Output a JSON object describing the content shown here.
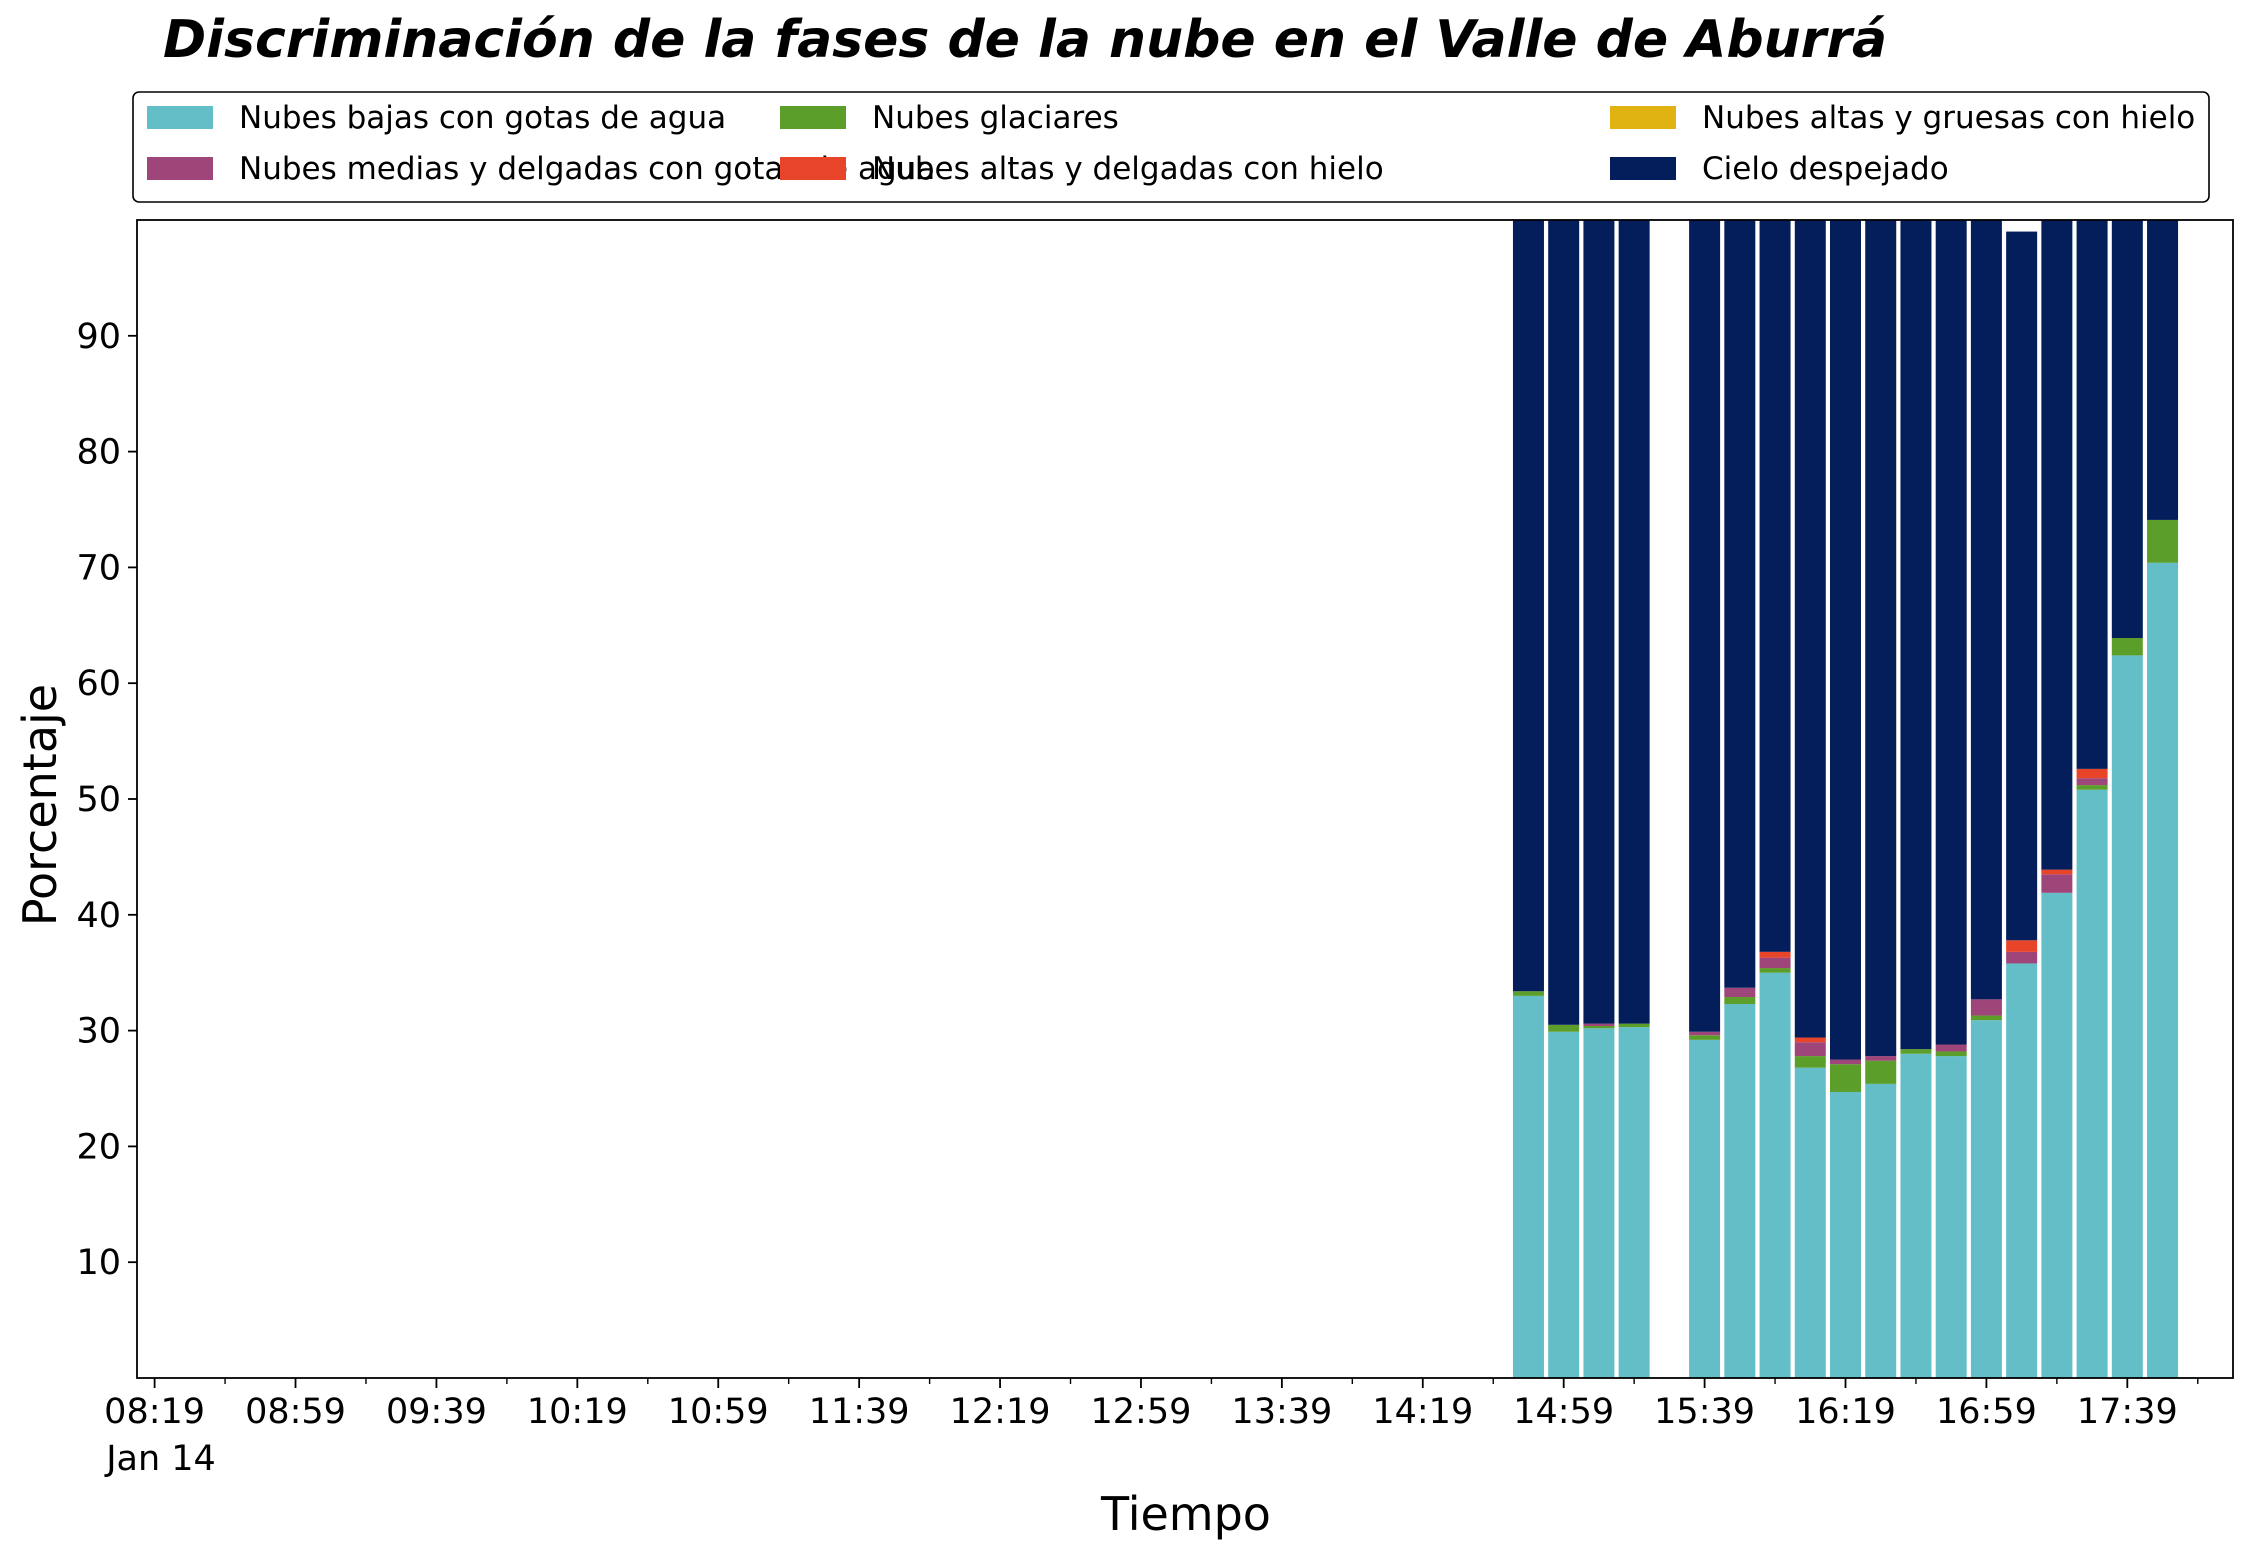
{
  "chart_data": {
    "type": "bar",
    "stacked": true,
    "title": "Discriminación de la fases de la nube en el Valle de Aburrá",
    "xlabel": "Tiempo",
    "ylabel": "Porcentaje",
    "ylim": [
      0,
      100
    ],
    "y_ticks": [
      10,
      20,
      30,
      40,
      50,
      60,
      70,
      80,
      90
    ],
    "x_tick_labels": [
      "08:19",
      "08:59",
      "09:39",
      "10:19",
      "10:59",
      "11:39",
      "12:19",
      "12:59",
      "13:39",
      "14:19",
      "14:59",
      "15:39",
      "16:19",
      "16:59",
      "17:39"
    ],
    "x_date_label": "Jan 14",
    "x_range": [
      "08:14",
      "18:09"
    ],
    "bar_interval_minutes": 10,
    "grid": false,
    "legend_position": "top",
    "x": [
      "14:49",
      "14:59",
      "15:09",
      "15:19",
      "15:39",
      "15:49",
      "15:59",
      "16:09",
      "16:19",
      "16:29",
      "16:39",
      "16:49",
      "16:59",
      "17:09",
      "17:19",
      "17:29",
      "17:39",
      "17:49"
    ],
    "series": [
      {
        "name": "Nubes bajas con gotas de agua",
        "color": "#64bec8",
        "values": [
          33.0,
          29.9,
          30.2,
          30.3,
          29.2,
          32.3,
          35.0,
          26.8,
          24.7,
          25.4,
          28.0,
          27.8,
          30.9,
          35.8,
          41.9,
          50.8,
          62.4,
          70.4
        ]
      },
      {
        "name": "Nubes glaciares",
        "color": "#5c9e2a",
        "values": [
          0.4,
          0.6,
          0.2,
          0.3,
          0.4,
          0.6,
          0.4,
          1.0,
          2.4,
          2.0,
          0.4,
          0.4,
          0.4,
          0.0,
          0.0,
          0.4,
          1.5,
          3.7
        ]
      },
      {
        "name": "Nubes altas y gruesas con hielo",
        "color": "#e0b313",
        "values": [
          0,
          0,
          0,
          0,
          0,
          0,
          0,
          0,
          0,
          0,
          0,
          0,
          0,
          0,
          0,
          0,
          0,
          0
        ]
      },
      {
        "name": "Nubes medias y delgadas con gotas de agua",
        "color": "#9e4579",
        "values": [
          0.0,
          0.0,
          0.2,
          0.0,
          0.3,
          0.8,
          0.9,
          1.2,
          0.4,
          0.4,
          0.0,
          0.6,
          1.4,
          1.0,
          1.6,
          0.6,
          0.0,
          0.0
        ]
      },
      {
        "name": "Nubes altas y delgadas con hielo",
        "color": "#e8442a",
        "values": [
          0.0,
          0.0,
          0.0,
          0.0,
          0.0,
          0.0,
          0.5,
          0.4,
          0.0,
          0.0,
          0.0,
          0.0,
          0.0,
          1.0,
          0.4,
          0.8,
          0.0,
          0.0
        ]
      },
      {
        "name": "Cielo despejado",
        "color": "#031e5a",
        "values": [
          66.6,
          69.5,
          69.4,
          69.4,
          70.1,
          66.3,
          63.2,
          70.6,
          72.5,
          72.2,
          71.6,
          71.2,
          67.3,
          61.2,
          56.1,
          47.4,
          36.1,
          25.9
        ]
      }
    ]
  }
}
